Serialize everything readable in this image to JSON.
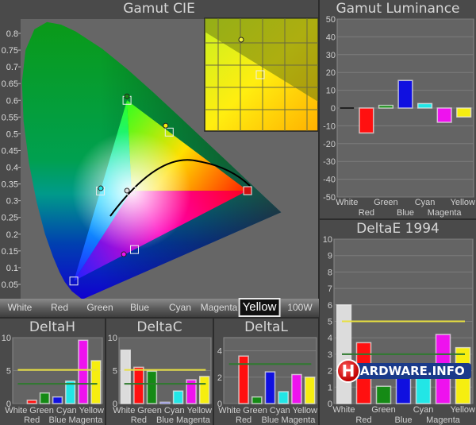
{
  "colors": {
    "White": "#dcdcdc",
    "Red": "#ff1010",
    "Green": "#158a15",
    "Blue": "#1010e0",
    "Cyan": "#22e6e6",
    "Magenta": "#ee12ee",
    "Yellow": "#f6ee10",
    "ref_yellow": "#e8e040",
    "ref_green": "#2e7a2e"
  },
  "buttons": {
    "items": [
      "White",
      "Red",
      "Green",
      "Blue",
      "Cyan",
      "Magenta",
      "Yellow",
      "100W"
    ],
    "selected": "Yellow"
  },
  "watermark": "HARDWARE.INFO",
  "chart_data": [
    {
      "id": "cie",
      "type": "scatter",
      "title": "Gamut CIE",
      "ylim": [
        0,
        0.8
      ],
      "yticks": [
        0.05,
        0.1,
        0.15,
        0.2,
        0.25,
        0.3,
        0.35,
        0.4,
        0.45,
        0.5,
        0.55,
        0.6,
        0.65,
        0.7,
        0.75,
        0.8
      ],
      "targets": [
        {
          "name": "Red",
          "x": 0.64,
          "y": 0.33
        },
        {
          "name": "Green",
          "x": 0.3,
          "y": 0.6
        },
        {
          "name": "Blue",
          "x": 0.15,
          "y": 0.06
        },
        {
          "name": "White",
          "x": 0.3127,
          "y": 0.329
        },
        {
          "name": "Cyan",
          "x": 0.225,
          "y": 0.329
        },
        {
          "name": "Magenta",
          "x": 0.321,
          "y": 0.154
        },
        {
          "name": "Yellow",
          "x": 0.419,
          "y": 0.505
        }
      ],
      "measured": [
        {
          "name": "Red",
          "x": 0.64,
          "y": 0.33
        },
        {
          "name": "Green",
          "x": 0.3,
          "y": 0.612
        },
        {
          "name": "Blue",
          "x": 0.15,
          "y": 0.06
        },
        {
          "name": "White",
          "x": 0.3,
          "y": 0.33
        },
        {
          "name": "Cyan",
          "x": 0.226,
          "y": 0.337
        },
        {
          "name": "Magenta",
          "x": 0.291,
          "y": 0.14
        },
        {
          "name": "Yellow",
          "x": 0.409,
          "y": 0.524
        }
      ],
      "inset": "Yellow"
    },
    {
      "id": "lum",
      "type": "bar",
      "title": "Gamut Luminance",
      "categories": [
        "White",
        "Red",
        "Green",
        "Blue",
        "Cyan",
        "Magenta",
        "Yellow"
      ],
      "values": [
        0,
        -14,
        1.5,
        15.5,
        2.5,
        -8,
        -5
      ],
      "ylim": [
        -50,
        50
      ],
      "yticks": [
        -50,
        -40,
        -30,
        -20,
        -10,
        0,
        10,
        20,
        30,
        40,
        50
      ],
      "ref_lines": []
    },
    {
      "id": "de",
      "type": "bar",
      "title": "DeltaE 1994",
      "categories": [
        "White",
        "Red",
        "Green",
        "Blue",
        "Cyan",
        "Magenta",
        "Yellow"
      ],
      "values": [
        6.0,
        3.7,
        1.05,
        2.4,
        2.25,
        4.2,
        3.4
      ],
      "ylim": [
        0,
        10
      ],
      "yticks": [
        0,
        1,
        2,
        3,
        4,
        5,
        6,
        7,
        8,
        9,
        10
      ],
      "ref_lines": [
        5,
        3
      ]
    },
    {
      "id": "dh",
      "type": "bar",
      "title": "DeltaH",
      "categories": [
        "White",
        "Red",
        "Green",
        "Blue",
        "Cyan",
        "Magenta",
        "Yellow"
      ],
      "values": [
        0,
        0.5,
        1.6,
        1.0,
        3.4,
        9.6,
        6.5
      ],
      "ylim": [
        0,
        10
      ],
      "yticks": [
        0,
        5,
        10
      ],
      "ref_lines": [
        5.1,
        3
      ]
    },
    {
      "id": "dc",
      "type": "bar",
      "title": "DeltaC",
      "categories": [
        "White",
        "Red",
        "Green",
        "Blue",
        "Cyan",
        "Magenta",
        "Yellow"
      ],
      "values": [
        8.1,
        5.5,
        4.9,
        0.2,
        1.9,
        3.6,
        4.1
      ],
      "ylim": [
        0,
        10
      ],
      "yticks": [
        0,
        5,
        10
      ],
      "ref_lines": [
        5.1,
        3
      ]
    },
    {
      "id": "dl",
      "type": "bar",
      "title": "DeltaL",
      "categories": [
        "White",
        "Red",
        "Green",
        "Blue",
        "Cyan",
        "Magenta",
        "Yellow"
      ],
      "values": [
        0,
        3.6,
        0.5,
        2.4,
        0.9,
        2.2,
        2.0
      ],
      "ylim": [
        0,
        5
      ],
      "yticks": [
        0,
        2,
        4
      ],
      "ref_lines": [
        3
      ]
    }
  ]
}
